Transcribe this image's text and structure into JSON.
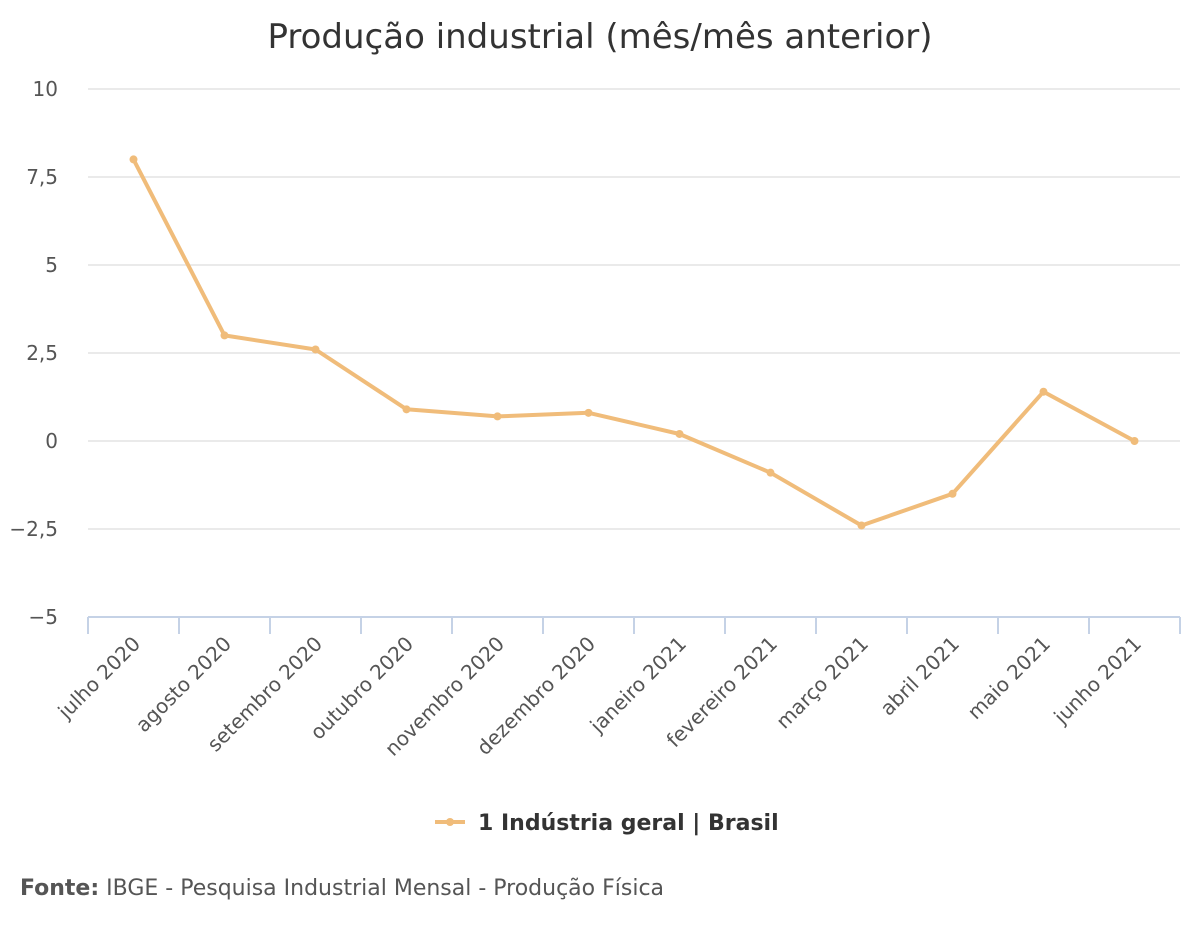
{
  "chart_data": {
    "type": "line",
    "title": "Produção industrial (mês/mês anterior)",
    "categories": [
      "julho 2020",
      "agosto 2020",
      "setembro 2020",
      "outubro 2020",
      "novembro 2020",
      "dezembro 2020",
      "janeiro 2021",
      "fevereiro 2021",
      "março 2021",
      "abril 2021",
      "maio 2021",
      "junho 2021"
    ],
    "series": [
      {
        "name": "1 Indústria geral | Brasil",
        "color": "#f0bc7a",
        "values": [
          8.0,
          3.0,
          2.6,
          0.9,
          0.7,
          0.8,
          0.2,
          -0.9,
          -2.4,
          -1.5,
          1.4,
          0.0
        ]
      }
    ],
    "ylim": [
      -5,
      10
    ],
    "yticks": [
      10,
      7.5,
      5,
      2.5,
      0,
      -2.5,
      -5
    ],
    "ytick_labels": [
      "10",
      "7,5",
      "5",
      "2,5",
      "0",
      "−2,5",
      "−5"
    ],
    "xlabel": "",
    "ylabel": "",
    "grid": true,
    "legend_position": "bottom-center"
  },
  "source": {
    "label": "Fonte:",
    "text": "IBGE - Pesquisa Industrial Mensal - Produção Física"
  }
}
